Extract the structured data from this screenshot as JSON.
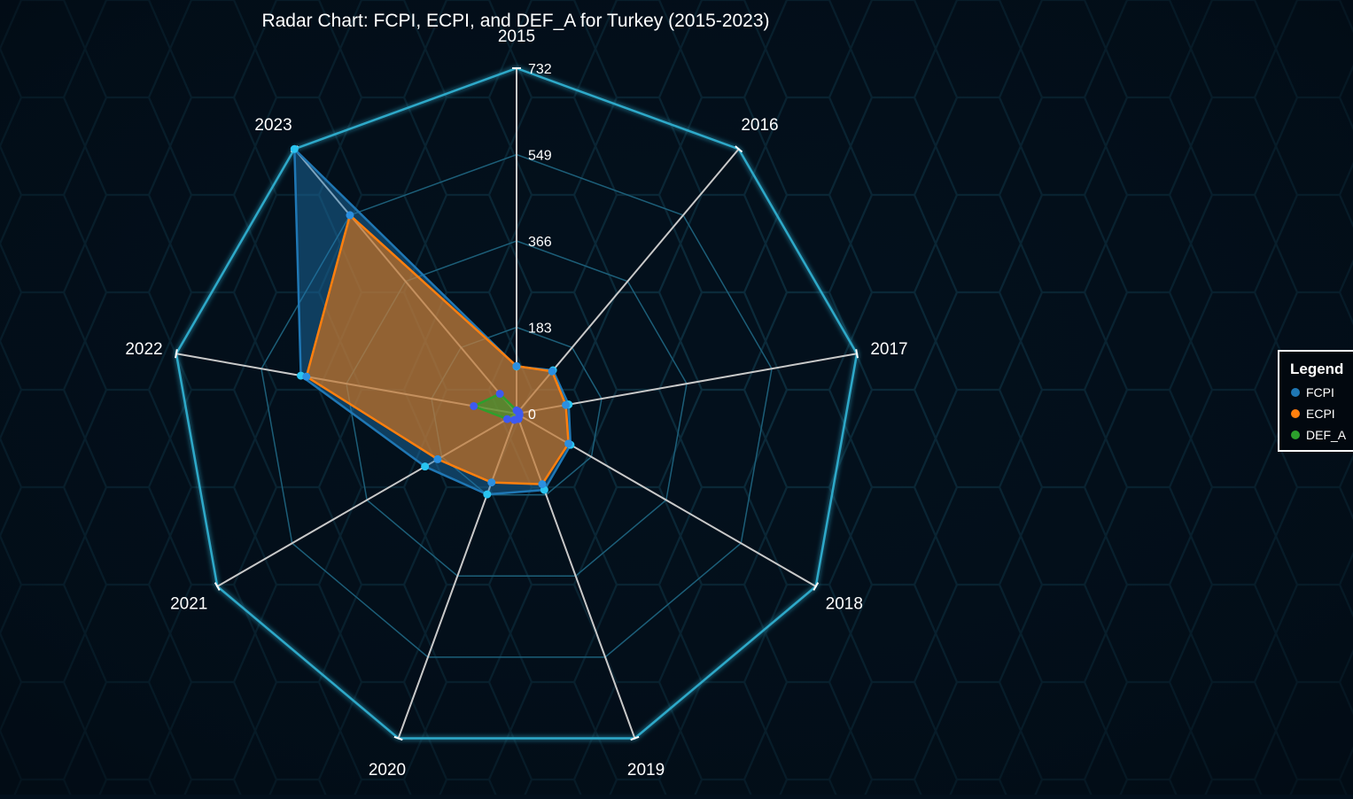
{
  "chart_data": {
    "type": "radar",
    "title": "Radar Chart: FCPI, ECPI, and DEF_A for Turkey (2015-2023)",
    "categories": [
      "2015",
      "2016",
      "2017",
      "2018",
      "2019",
      "2020",
      "2021",
      "2022",
      "2023"
    ],
    "rlim": [
      0,
      732
    ],
    "r_ticks": [
      "0",
      "183",
      "366",
      "549",
      "732"
    ],
    "series": [
      {
        "name": "FCPI",
        "color": "#1f77b4",
        "values": [
          100,
          120,
          112,
          132,
          172,
          182,
          224,
          464,
          732
        ]
      },
      {
        "name": "ECPI",
        "color": "#ff7f0e",
        "values": [
          101,
          117,
          106,
          127,
          159,
          155,
          193,
          452,
          549
        ]
      },
      {
        "name": "DEF_A",
        "color": "#2ca02c",
        "values": [
          7,
          6,
          6,
          7,
          12,
          14,
          23,
          92,
          55
        ]
      }
    ],
    "grid": true,
    "legend": {
      "title": "Legend",
      "placement": "right"
    }
  }
}
